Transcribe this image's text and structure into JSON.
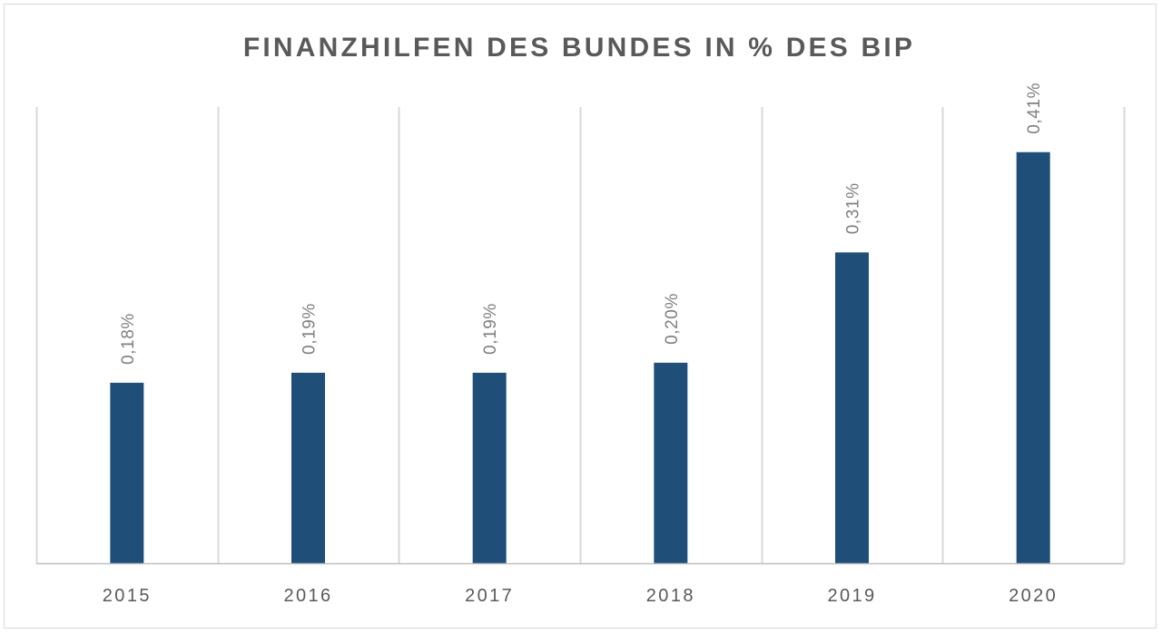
{
  "chart_data": {
    "type": "bar",
    "title": "FINANZHILFEN DES BUNDES IN % DES BIP",
    "categories": [
      "2015",
      "2016",
      "2017",
      "2018",
      "2019",
      "2020"
    ],
    "series": [
      {
        "values": [
          0.18,
          0.19,
          0.19,
          0.2,
          0.31,
          0.41
        ],
        "data_labels": [
          "0,18%",
          "0,19%",
          "0,19%",
          "0,20%",
          "0,31%",
          "0,41%"
        ],
        "color": "#1f4e79"
      }
    ],
    "xlabel": "",
    "ylabel": "",
    "ylim": [
      0,
      0.455
    ],
    "y_axis_visible": false,
    "grid": "vertical category separators",
    "legend": "none",
    "data_label_orientation": "vertical"
  },
  "colors": {
    "bar": "#1f4e79",
    "title": "#595959",
    "tick_label": "#595959",
    "data_label": "#7f7f7f",
    "gridline": "#d9d9d9",
    "axis_line": "#bfbfbf"
  }
}
